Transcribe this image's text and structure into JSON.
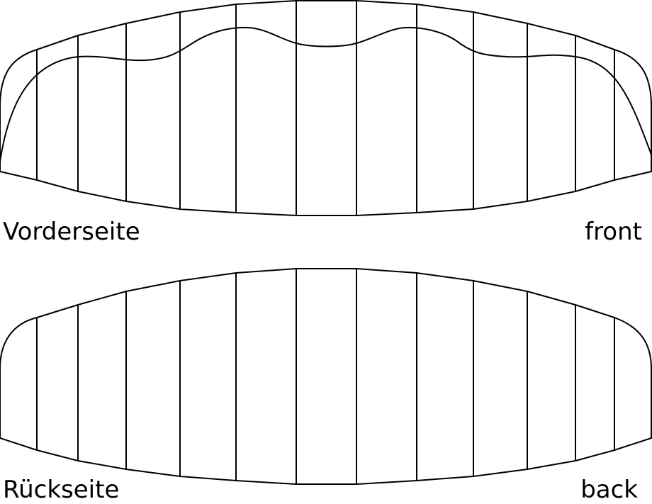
{
  "labels": {
    "front_de": "Vorderseite",
    "front_en": "front",
    "back_de": "Rückseite",
    "back_en": "back"
  },
  "colors": {
    "stroke": "#000000",
    "background": "#ffffff"
  }
}
